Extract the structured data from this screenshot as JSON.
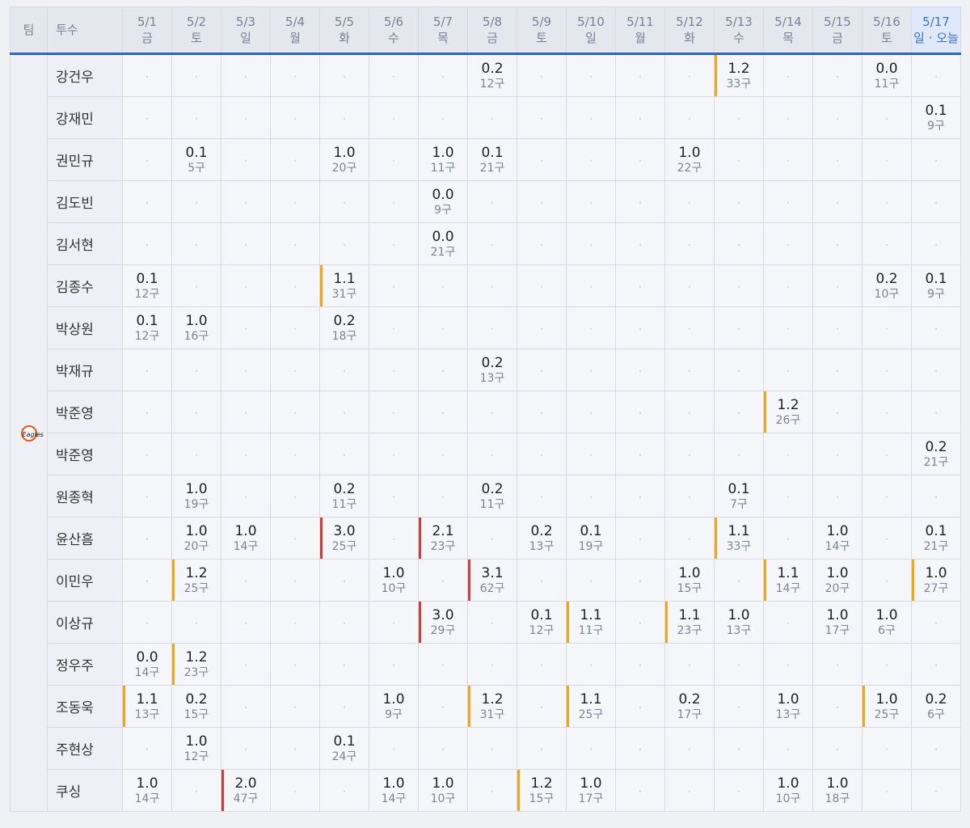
{
  "header": {
    "team_label": "팀",
    "pitcher_label": "투수",
    "dates": [
      {
        "date": "5/1",
        "day": "금"
      },
      {
        "date": "5/2",
        "day": "토"
      },
      {
        "date": "5/3",
        "day": "일"
      },
      {
        "date": "5/4",
        "day": "월"
      },
      {
        "date": "5/5",
        "day": "화"
      },
      {
        "date": "5/6",
        "day": "수"
      },
      {
        "date": "5/7",
        "day": "목"
      },
      {
        "date": "5/8",
        "day": "금"
      },
      {
        "date": "5/9",
        "day": "토"
      },
      {
        "date": "5/10",
        "day": "일"
      },
      {
        "date": "5/11",
        "day": "월"
      },
      {
        "date": "5/12",
        "day": "화"
      },
      {
        "date": "5/13",
        "day": "수"
      },
      {
        "date": "5/14",
        "day": "목"
      },
      {
        "date": "5/15",
        "day": "금"
      },
      {
        "date": "5/16",
        "day": "토"
      },
      {
        "date": "5/17",
        "day": "일 · 오늘"
      }
    ]
  },
  "team": {
    "logo_icon": "eagles-logo-icon",
    "logo_text": "Eagles"
  },
  "colors": {
    "accent": "#2f63c6",
    "warn": "#f0a51a",
    "alert": "#d53b3b"
  },
  "rows": [
    {
      "name": "강건우",
      "cells": [
        null,
        null,
        null,
        null,
        null,
        null,
        null,
        {
          "ip": "0.2",
          "pc": "12구"
        },
        null,
        null,
        null,
        null,
        {
          "ip": "1.2",
          "pc": "33구",
          "level": "warn"
        },
        null,
        null,
        {
          "ip": "0.0",
          "pc": "11구"
        },
        null
      ]
    },
    {
      "name": "강재민",
      "cells": [
        null,
        null,
        null,
        null,
        null,
        null,
        null,
        null,
        null,
        null,
        null,
        null,
        null,
        null,
        null,
        null,
        {
          "ip": "0.1",
          "pc": "9구"
        }
      ]
    },
    {
      "name": "권민규",
      "cells": [
        null,
        {
          "ip": "0.1",
          "pc": "5구"
        },
        null,
        null,
        {
          "ip": "1.0",
          "pc": "20구"
        },
        null,
        {
          "ip": "1.0",
          "pc": "11구"
        },
        {
          "ip": "0.1",
          "pc": "21구"
        },
        null,
        null,
        null,
        {
          "ip": "1.0",
          "pc": "22구"
        },
        null,
        null,
        null,
        null,
        null
      ]
    },
    {
      "name": "김도빈",
      "cells": [
        null,
        null,
        null,
        null,
        null,
        null,
        {
          "ip": "0.0",
          "pc": "9구"
        },
        null,
        null,
        null,
        null,
        null,
        null,
        null,
        null,
        null,
        null
      ]
    },
    {
      "name": "김서현",
      "cells": [
        null,
        null,
        null,
        null,
        null,
        null,
        {
          "ip": "0.0",
          "pc": "21구"
        },
        null,
        null,
        null,
        null,
        null,
        null,
        null,
        null,
        null,
        null
      ]
    },
    {
      "name": "김종수",
      "cells": [
        {
          "ip": "0.1",
          "pc": "12구"
        },
        null,
        null,
        null,
        {
          "ip": "1.1",
          "pc": "31구",
          "level": "warn"
        },
        null,
        null,
        null,
        null,
        null,
        null,
        null,
        null,
        null,
        null,
        {
          "ip": "0.2",
          "pc": "10구"
        },
        {
          "ip": "0.1",
          "pc": "9구"
        }
      ]
    },
    {
      "name": "박상원",
      "cells": [
        {
          "ip": "0.1",
          "pc": "12구"
        },
        {
          "ip": "1.0",
          "pc": "16구"
        },
        null,
        null,
        {
          "ip": "0.2",
          "pc": "18구"
        },
        null,
        null,
        null,
        null,
        null,
        null,
        null,
        null,
        null,
        null,
        null,
        null
      ]
    },
    {
      "name": "박재규",
      "cells": [
        null,
        null,
        null,
        null,
        null,
        null,
        null,
        {
          "ip": "0.2",
          "pc": "13구"
        },
        null,
        null,
        null,
        null,
        null,
        null,
        null,
        null,
        null
      ]
    },
    {
      "name": "박준영",
      "cells": [
        null,
        null,
        null,
        null,
        null,
        null,
        null,
        null,
        null,
        null,
        null,
        null,
        null,
        {
          "ip": "1.2",
          "pc": "26구",
          "level": "warn"
        },
        null,
        null,
        null
      ]
    },
    {
      "name": "박준영",
      "cells": [
        null,
        null,
        null,
        null,
        null,
        null,
        null,
        null,
        null,
        null,
        null,
        null,
        null,
        null,
        null,
        null,
        {
          "ip": "0.2",
          "pc": "21구"
        }
      ]
    },
    {
      "name": "원종혁",
      "cells": [
        null,
        {
          "ip": "1.0",
          "pc": "19구"
        },
        null,
        null,
        {
          "ip": "0.2",
          "pc": "11구"
        },
        null,
        null,
        {
          "ip": "0.2",
          "pc": "11구"
        },
        null,
        null,
        null,
        null,
        {
          "ip": "0.1",
          "pc": "7구"
        },
        null,
        null,
        null,
        null
      ]
    },
    {
      "name": "윤산흠",
      "cells": [
        null,
        {
          "ip": "1.0",
          "pc": "20구"
        },
        {
          "ip": "1.0",
          "pc": "14구"
        },
        null,
        {
          "ip": "3.0",
          "pc": "25구",
          "level": "alert"
        },
        null,
        {
          "ip": "2.1",
          "pc": "23구",
          "level": "alert"
        },
        null,
        {
          "ip": "0.2",
          "pc": "13구"
        },
        {
          "ip": "0.1",
          "pc": "19구"
        },
        null,
        null,
        {
          "ip": "1.1",
          "pc": "33구",
          "level": "warn"
        },
        null,
        {
          "ip": "1.0",
          "pc": "14구"
        },
        null,
        {
          "ip": "0.1",
          "pc": "21구"
        }
      ]
    },
    {
      "name": "이민우",
      "cells": [
        null,
        {
          "ip": "1.2",
          "pc": "25구",
          "level": "warn"
        },
        null,
        null,
        null,
        {
          "ip": "1.0",
          "pc": "10구"
        },
        null,
        {
          "ip": "3.1",
          "pc": "62구",
          "level": "alert"
        },
        null,
        null,
        null,
        {
          "ip": "1.0",
          "pc": "15구"
        },
        null,
        {
          "ip": "1.1",
          "pc": "14구",
          "level": "warn"
        },
        {
          "ip": "1.0",
          "pc": "20구"
        },
        null,
        {
          "ip": "1.0",
          "pc": "27구",
          "level": "warn"
        }
      ]
    },
    {
      "name": "이상규",
      "cells": [
        null,
        null,
        null,
        null,
        null,
        null,
        {
          "ip": "3.0",
          "pc": "29구",
          "level": "alert"
        },
        null,
        {
          "ip": "0.1",
          "pc": "12구"
        },
        {
          "ip": "1.1",
          "pc": "11구",
          "level": "warn"
        },
        null,
        {
          "ip": "1.1",
          "pc": "23구",
          "level": "warn"
        },
        {
          "ip": "1.0",
          "pc": "13구"
        },
        null,
        {
          "ip": "1.0",
          "pc": "17구"
        },
        {
          "ip": "1.0",
          "pc": "6구"
        },
        null
      ]
    },
    {
      "name": "정우주",
      "cells": [
        {
          "ip": "0.0",
          "pc": "14구"
        },
        {
          "ip": "1.2",
          "pc": "23구",
          "level": "warn"
        },
        null,
        null,
        null,
        null,
        null,
        null,
        null,
        null,
        null,
        null,
        null,
        null,
        null,
        null,
        null
      ]
    },
    {
      "name": "조동욱",
      "cells": [
        {
          "ip": "1.1",
          "pc": "13구",
          "level": "warn"
        },
        {
          "ip": "0.2",
          "pc": "15구"
        },
        null,
        null,
        null,
        {
          "ip": "1.0",
          "pc": "9구"
        },
        null,
        {
          "ip": "1.2",
          "pc": "31구",
          "level": "warn"
        },
        null,
        {
          "ip": "1.1",
          "pc": "25구",
          "level": "warn"
        },
        null,
        {
          "ip": "0.2",
          "pc": "17구"
        },
        null,
        {
          "ip": "1.0",
          "pc": "13구"
        },
        null,
        {
          "ip": "1.0",
          "pc": "25구",
          "level": "warn"
        },
        {
          "ip": "0.2",
          "pc": "6구"
        }
      ]
    },
    {
      "name": "주현상",
      "cells": [
        null,
        {
          "ip": "1.0",
          "pc": "12구"
        },
        null,
        null,
        {
          "ip": "0.1",
          "pc": "24구"
        },
        null,
        null,
        null,
        null,
        null,
        null,
        null,
        null,
        null,
        null,
        null,
        null
      ]
    },
    {
      "name": "쿠싱",
      "cells": [
        {
          "ip": "1.0",
          "pc": "14구"
        },
        null,
        {
          "ip": "2.0",
          "pc": "47구",
          "level": "alert"
        },
        null,
        null,
        {
          "ip": "1.0",
          "pc": "14구"
        },
        {
          "ip": "1.0",
          "pc": "10구"
        },
        null,
        {
          "ip": "1.2",
          "pc": "15구",
          "level": "warn"
        },
        {
          "ip": "1.0",
          "pc": "17구"
        },
        null,
        null,
        null,
        {
          "ip": "1.0",
          "pc": "10구"
        },
        {
          "ip": "1.0",
          "pc": "18구"
        },
        null,
        null
      ]
    }
  ]
}
